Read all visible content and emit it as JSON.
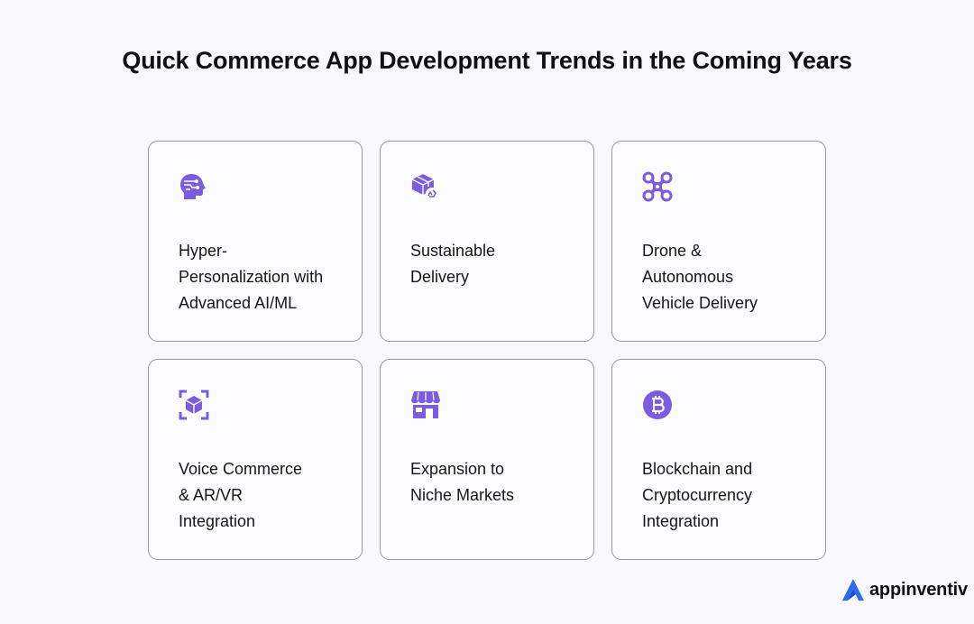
{
  "title": "Quick Commerce App Development Trends in the Coming Years",
  "accent_color": "#7b5ce0",
  "cards": [
    {
      "icon": "ai-head-icon",
      "label": "Hyper-\nPersonalization with\nAdvanced AI/ML"
    },
    {
      "icon": "eco-package-icon",
      "label": "Sustainable\nDelivery"
    },
    {
      "icon": "drone-icon",
      "label": "Drone &\nAutonomous\nVehicle Delivery"
    },
    {
      "icon": "ar-cube-icon",
      "label": "Voice Commerce\n& AR/VR\nIntegration"
    },
    {
      "icon": "storefront-icon",
      "label": "Expansion to\nNiche Markets"
    },
    {
      "icon": "bitcoin-icon",
      "label": "Blockchain and\nCryptocurrency\nIntegration"
    }
  ],
  "logo": {
    "text": "appinventiv",
    "color": "#2b6cf0"
  }
}
